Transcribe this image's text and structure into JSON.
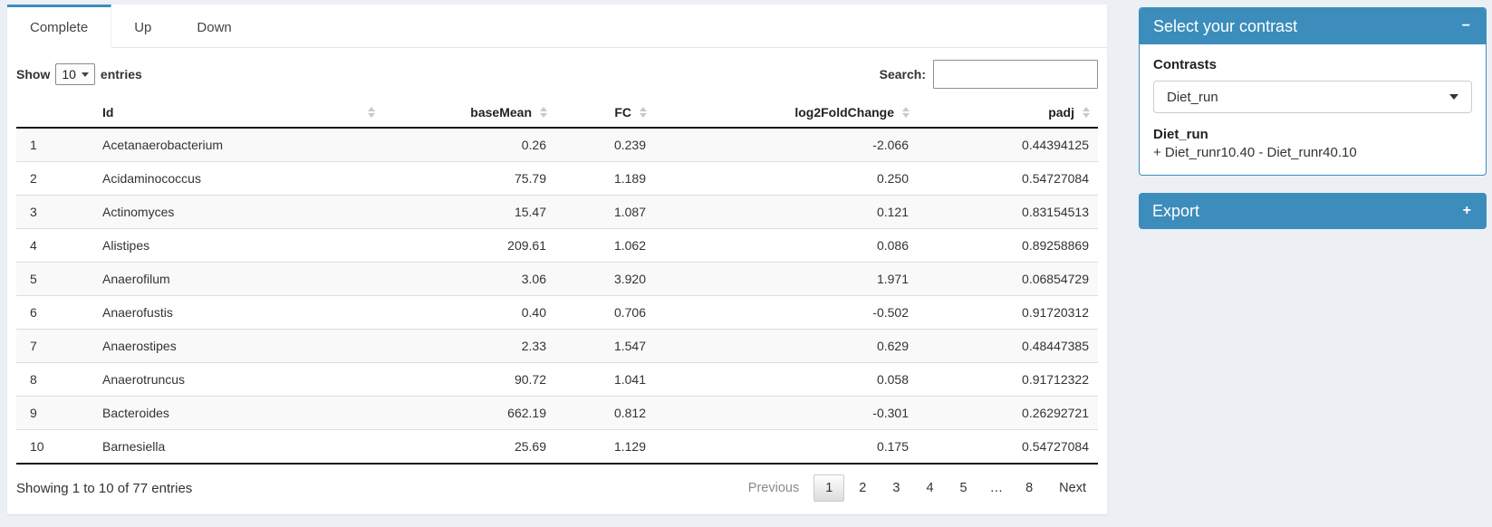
{
  "tabs": [
    {
      "label": "Complete",
      "active": true
    },
    {
      "label": "Up",
      "active": false
    },
    {
      "label": "Down",
      "active": false
    }
  ],
  "table_controls": {
    "show_label": "Show",
    "entries_value": "10",
    "entries_suffix": "entries",
    "search_label": "Search:",
    "search_value": ""
  },
  "table": {
    "columns": [
      {
        "label": "",
        "align": "left",
        "sortable": false
      },
      {
        "label": "Id",
        "align": "left",
        "sortable": true
      },
      {
        "label": "baseMean",
        "align": "right",
        "sortable": true
      },
      {
        "label": "FC",
        "align": "right",
        "sortable": true
      },
      {
        "label": "log2FoldChange",
        "align": "right",
        "sortable": true
      },
      {
        "label": "padj",
        "align": "right",
        "sortable": true
      }
    ],
    "rows": [
      [
        "1",
        "Acetanaerobacterium",
        "0.26",
        "0.239",
        "-2.066",
        "0.44394125"
      ],
      [
        "2",
        "Acidaminococcus",
        "75.79",
        "1.189",
        "0.250",
        "0.54727084"
      ],
      [
        "3",
        "Actinomyces",
        "15.47",
        "1.087",
        "0.121",
        "0.83154513"
      ],
      [
        "4",
        "Alistipes",
        "209.61",
        "1.062",
        "0.086",
        "0.89258869"
      ],
      [
        "5",
        "Anaerofilum",
        "3.06",
        "3.920",
        "1.971",
        "0.06854729"
      ],
      [
        "6",
        "Anaerofustis",
        "0.40",
        "0.706",
        "-0.502",
        "0.91720312"
      ],
      [
        "7",
        "Anaerostipes",
        "2.33",
        "1.547",
        "0.629",
        "0.48447385"
      ],
      [
        "8",
        "Anaerotruncus",
        "90.72",
        "1.041",
        "0.058",
        "0.91712322"
      ],
      [
        "9",
        "Bacteroides",
        "662.19",
        "0.812",
        "-0.301",
        "0.26292721"
      ],
      [
        "10",
        "Barnesiella",
        "25.69",
        "1.129",
        "0.175",
        "0.54727084"
      ]
    ],
    "info": "Showing 1 to 10 of 77 entries",
    "pagination": [
      {
        "label": "Previous",
        "state": "disabled"
      },
      {
        "label": "1",
        "state": "current"
      },
      {
        "label": "2",
        "state": ""
      },
      {
        "label": "3",
        "state": ""
      },
      {
        "label": "4",
        "state": ""
      },
      {
        "label": "5",
        "state": ""
      },
      {
        "label": "…",
        "state": "ellipsis"
      },
      {
        "label": "8",
        "state": ""
      },
      {
        "label": "Next",
        "state": ""
      }
    ]
  },
  "contrast_panel": {
    "title": "Select your contrast",
    "collapse_icon": "−",
    "contrasts_label": "Contrasts",
    "selected_contrast": "Diet_run",
    "contrast_name": "Diet_run",
    "contrast_formula": "+ Diet_runr10.40 - Diet_runr40.10"
  },
  "export_panel": {
    "title": "Export",
    "expand_icon": "+"
  },
  "colors": {
    "primary": "#3c8dbc",
    "page_bg": "#ecf0f5",
    "stripe": "#f9f9f9"
  }
}
